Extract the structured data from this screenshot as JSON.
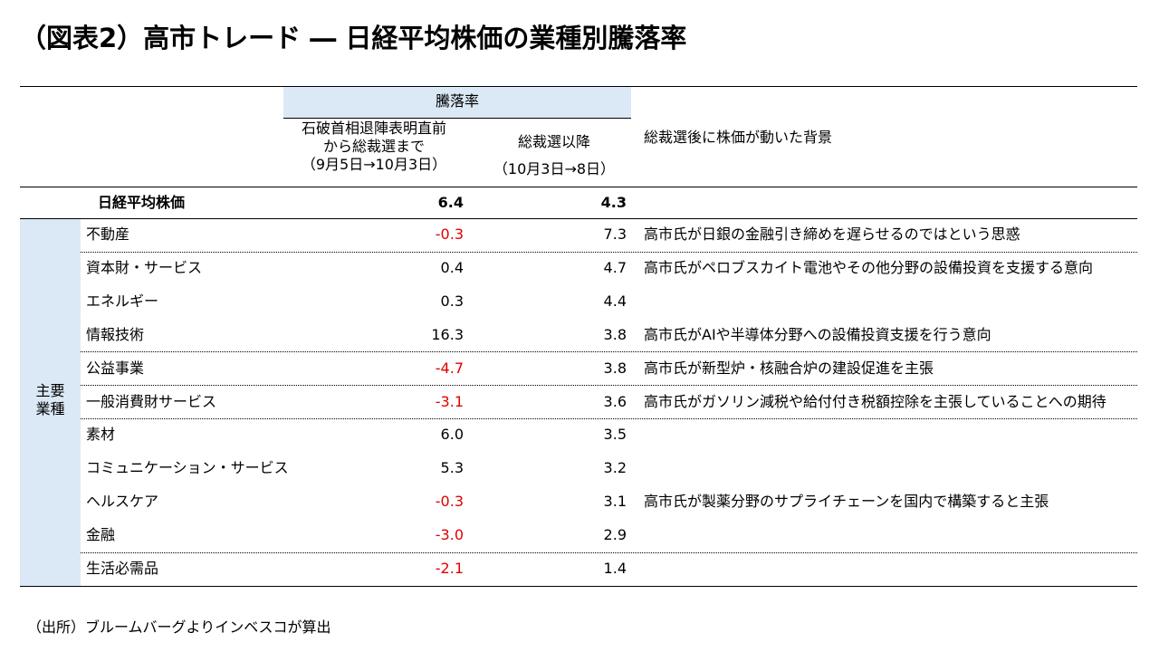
{
  "header": {
    "title": "（図表2）高市トレード ― 日経平均株価の業種別騰落率"
  },
  "table": {
    "header": {
      "group": "騰落率",
      "col1": [
        "石破首相退陣表明直前",
        "から総裁選まで",
        "（9月5日→10月3日）"
      ],
      "col2": [
        "総裁選以降",
        "（10月3日→8日）"
      ],
      "reason": "総裁選後に株価が動いた背景"
    },
    "total": {
      "name": "日経平均株価",
      "v1": "6.4",
      "v2": "4.3"
    },
    "group": [
      "主要",
      "業種"
    ],
    "rows": [
      [
        "不動産",
        "-0.3",
        "7.3",
        "高市氏が日銀の金融引き締めを遅らせるのではという思惑"
      ],
      [
        "資本財・サービス",
        "0.4",
        "4.7",
        "高市氏がペロブスカイト電池やその他分野の設備投資を支援する意向"
      ],
      [
        "エネルギー",
        "0.3",
        "4.4"
      ],
      [
        "情報技術",
        "16.3",
        "3.8",
        "高市氏がAIや半導体分野への設備投資支援を行う意向"
      ],
      [
        "公益事業",
        "-4.7",
        "3.8",
        "高市氏が新型炉・核融合炉の建設促進を主張"
      ],
      [
        "一般消費財サービス",
        "-3.1",
        "3.6",
        "高市氏がガソリン減税や給付付き税額控除を主張していることへの期待"
      ],
      [
        "素材",
        "6.0",
        "3.5"
      ],
      [
        "コミュニケーション・サービス",
        "5.3",
        "3.2"
      ],
      [
        "ヘルスケア",
        "-0.3",
        "3.1",
        "高市氏が製薬分野のサプライチェーンを国内で構築すると主張"
      ],
      [
        "金融",
        "-3.0",
        "2.9"
      ],
      [
        "生活必需品",
        "-2.1",
        "1.4"
      ]
    ]
  },
  "footer": {
    "source": "（出所）ブルームバーグよりインベスコが算出"
  }
}
